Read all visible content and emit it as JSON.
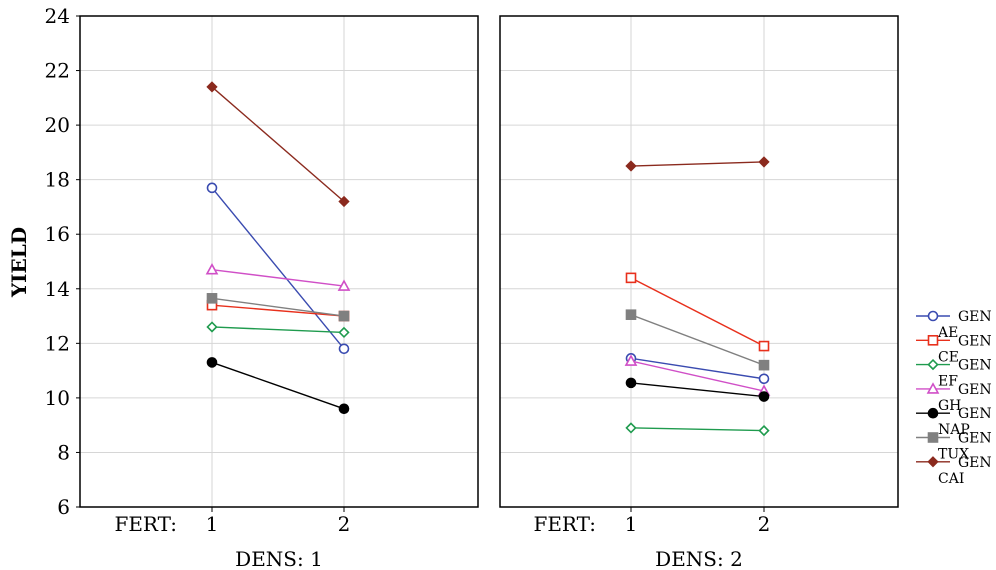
{
  "chart_data": {
    "type": "line",
    "ylabel": "YIELD",
    "ylim": [
      6,
      24
    ],
    "yticks": [
      6,
      8,
      10,
      12,
      14,
      16,
      18,
      20,
      22,
      24
    ],
    "x_label": "FERT:",
    "categories": [
      "1",
      "2"
    ],
    "grid": true,
    "legend_position": "right",
    "panels": [
      {
        "label": "DENS: 1",
        "series": [
          {
            "name": "GEN AE",
            "line1": "GEN",
            "line2": "AE",
            "color": "#3a4bb0",
            "marker": "circle-open",
            "values": [
              17.7,
              11.8
            ]
          },
          {
            "name": "GEN CE",
            "line1": "GEN",
            "line2": "CE",
            "color": "#e8301c",
            "marker": "square-open",
            "values": [
              13.4,
              13.0
            ]
          },
          {
            "name": "GEN EF",
            "line1": "GEN",
            "line2": "EF",
            "color": "#1f9b4e",
            "marker": "diamond-open",
            "values": [
              12.6,
              12.4
            ]
          },
          {
            "name": "GEN GH",
            "line1": "GEN",
            "line2": "GH",
            "color": "#d04fc7",
            "marker": "triangle-open",
            "values": [
              14.7,
              14.1
            ]
          },
          {
            "name": "GEN NAP",
            "line1": "GEN",
            "line2": "NAP",
            "color": "#000000",
            "marker": "circle-filled",
            "values": [
              11.3,
              9.6
            ]
          },
          {
            "name": "GEN TUX",
            "line1": "GEN",
            "line2": "TUX",
            "color": "#808080",
            "marker": "square-filled",
            "values": [
              13.65,
              13.0
            ]
          },
          {
            "name": "GEN CAI",
            "line1": "GEN",
            "line2": "CAI",
            "color": "#8b2a1e",
            "marker": "diamond-filled",
            "values": [
              21.4,
              17.2
            ]
          }
        ]
      },
      {
        "label": "DENS: 2",
        "series": [
          {
            "name": "GEN AE",
            "line1": "GEN",
            "line2": "AE",
            "color": "#3a4bb0",
            "marker": "circle-open",
            "values": [
              11.45,
              10.7
            ]
          },
          {
            "name": "GEN CE",
            "line1": "GEN",
            "line2": "CE",
            "color": "#e8301c",
            "marker": "square-open",
            "values": [
              14.4,
              11.9
            ]
          },
          {
            "name": "GEN EF",
            "line1": "GEN",
            "line2": "EF",
            "color": "#1f9b4e",
            "marker": "diamond-open",
            "values": [
              8.9,
              8.8
            ]
          },
          {
            "name": "GEN GH",
            "line1": "GEN",
            "line2": "GH",
            "color": "#d04fc7",
            "marker": "triangle-open",
            "values": [
              11.35,
              10.25
            ]
          },
          {
            "name": "GEN NAP",
            "line1": "GEN",
            "line2": "NAP",
            "color": "#000000",
            "marker": "circle-filled",
            "values": [
              10.55,
              10.05
            ]
          },
          {
            "name": "GEN TUX",
            "line1": "GEN",
            "line2": "TUX",
            "color": "#808080",
            "marker": "square-filled",
            "values": [
              13.05,
              11.2
            ]
          },
          {
            "name": "GEN CAI",
            "line1": "GEN",
            "line2": "CAI",
            "color": "#8b2a1e",
            "marker": "diamond-filled",
            "values": [
              18.5,
              18.65
            ]
          }
        ]
      }
    ]
  }
}
